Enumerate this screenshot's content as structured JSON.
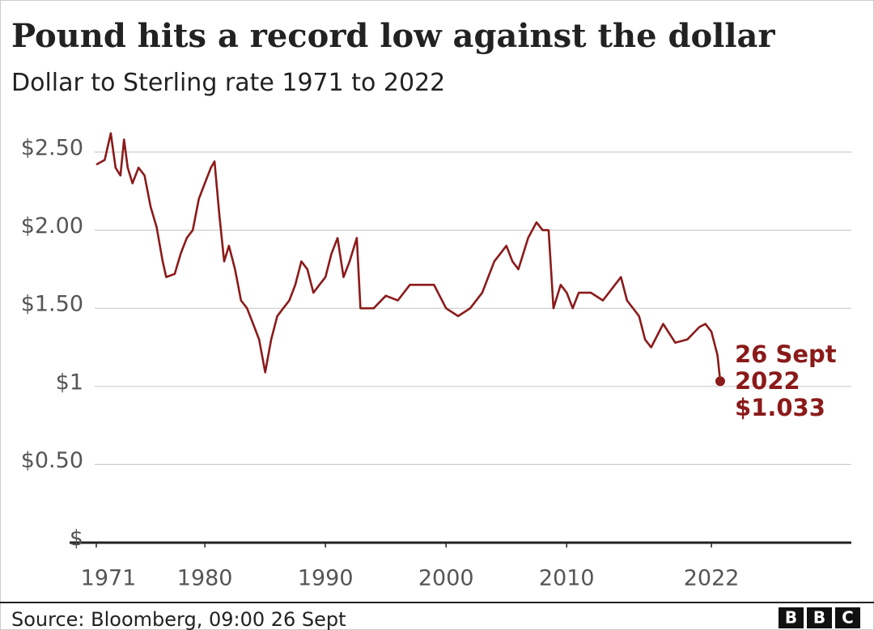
{
  "chart_data": {
    "type": "line",
    "title": "Pound hits a record low against the dollar",
    "subtitle": "Dollar to Sterling rate 1971 to 2022",
    "source": "Source: Bloomberg, 09:00 26 Sept",
    "logo": [
      "B",
      "B",
      "C"
    ],
    "annotation": [
      "26 Sept",
      "2022",
      "$1.033"
    ],
    "x": [
      1971.0,
      1971.7,
      1972.2,
      1972.6,
      1973.0,
      1973.3,
      1973.6,
      1974.0,
      1974.5,
      1975.0,
      1975.5,
      1976.0,
      1976.5,
      1976.8,
      1977.5,
      1978.0,
      1978.5,
      1979.0,
      1979.5,
      1980.0,
      1980.5,
      1980.8,
      1981.2,
      1981.6,
      1982.0,
      1982.5,
      1983.0,
      1983.5,
      1984.0,
      1984.5,
      1985.0,
      1985.5,
      1986.0,
      1986.5,
      1987.0,
      1987.5,
      1988.0,
      1988.5,
      1989.0,
      1989.5,
      1990.0,
      1990.5,
      1991.0,
      1991.5,
      1992.0,
      1992.6,
      1992.9,
      1993.5,
      1994.0,
      1995.0,
      1996.0,
      1997.0,
      1998.0,
      1999.0,
      2000.0,
      2001.0,
      2002.0,
      2003.0,
      2004.0,
      2004.5,
      2005.0,
      2005.5,
      2006.0,
      2006.8,
      2007.5,
      2008.0,
      2008.5,
      2008.9,
      2009.5,
      2010.0,
      2010.5,
      2011.0,
      2012.0,
      2013.0,
      2014.0,
      2014.5,
      2015.0,
      2016.0,
      2016.5,
      2017.0,
      2018.0,
      2019.0,
      2020.0,
      2021.0,
      2021.5,
      2022.0,
      2022.5,
      2022.73
    ],
    "series": [
      {
        "name": "Dollar to Sterling",
        "color": "#8b1a1a",
        "values": [
          2.42,
          2.45,
          2.62,
          2.4,
          2.35,
          2.58,
          2.4,
          2.3,
          2.4,
          2.35,
          2.15,
          2.02,
          1.8,
          1.7,
          1.72,
          1.85,
          1.95,
          2.0,
          2.2,
          2.3,
          2.4,
          2.44,
          2.1,
          1.8,
          1.9,
          1.75,
          1.55,
          1.5,
          1.4,
          1.3,
          1.09,
          1.3,
          1.45,
          1.5,
          1.55,
          1.65,
          1.8,
          1.75,
          1.6,
          1.65,
          1.7,
          1.85,
          1.95,
          1.7,
          1.8,
          1.95,
          1.5,
          1.5,
          1.5,
          1.58,
          1.55,
          1.65,
          1.65,
          1.65,
          1.5,
          1.45,
          1.5,
          1.6,
          1.8,
          1.85,
          1.9,
          1.8,
          1.75,
          1.95,
          2.05,
          2.0,
          2.0,
          1.5,
          1.65,
          1.6,
          1.5,
          1.6,
          1.6,
          1.55,
          1.65,
          1.7,
          1.55,
          1.45,
          1.3,
          1.25,
          1.4,
          1.28,
          1.3,
          1.38,
          1.4,
          1.35,
          1.2,
          1.033
        ]
      }
    ],
    "xlim": [
      1971,
      2033.6
    ],
    "xticks": [
      1971,
      1980,
      1990,
      2000,
      2010,
      2022
    ],
    "ylim": [
      0,
      2.75
    ],
    "yticks": [
      {
        "value": 0,
        "label": "$"
      },
      {
        "value": 0.5,
        "label": "$0.50"
      },
      {
        "value": 1,
        "label": "$1"
      },
      {
        "value": 1.5,
        "label": "$1.50"
      },
      {
        "value": 2,
        "label": "$2.00"
      },
      {
        "value": 2.5,
        "label": "$2.50"
      }
    ],
    "grid": true
  }
}
